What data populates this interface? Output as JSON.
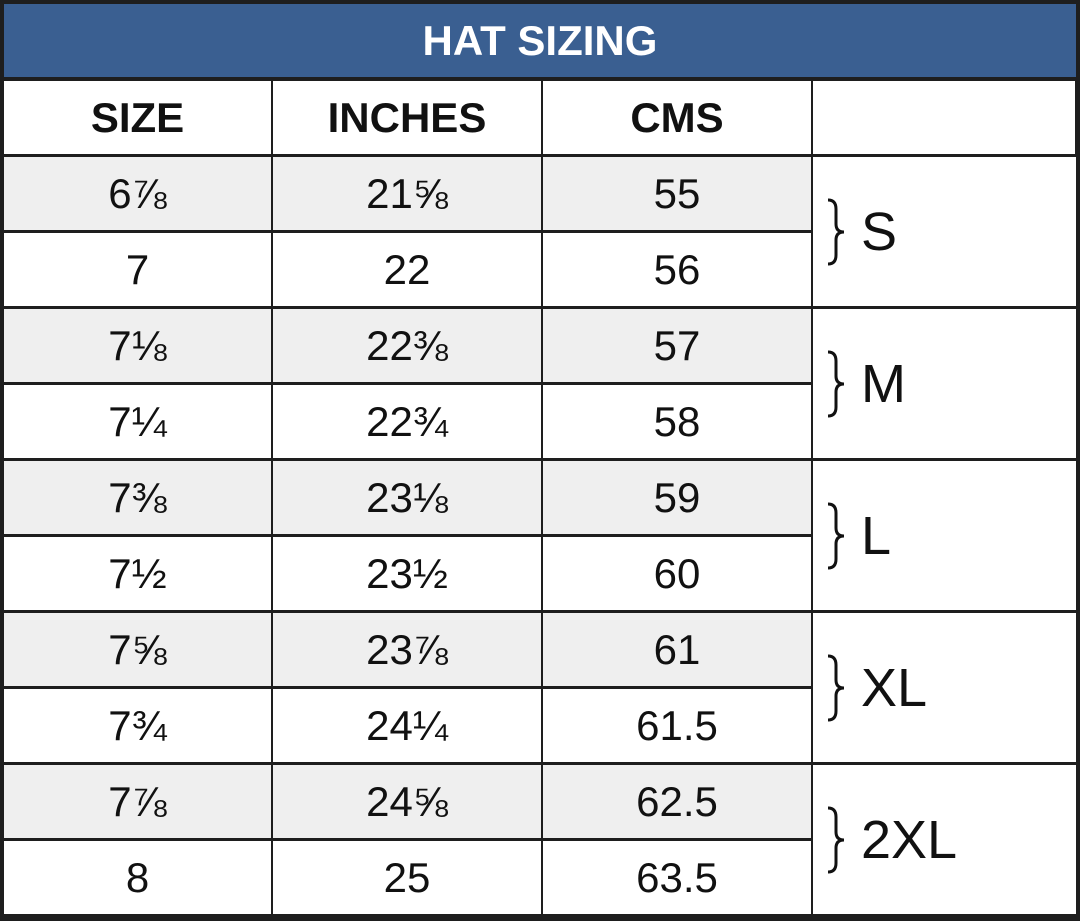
{
  "title": "HAT SIZING",
  "table": {
    "header": [
      "SIZE",
      "INCHES",
      "CMS"
    ],
    "rows": [
      [
        "6⅞",
        "21⅝",
        55
      ],
      [
        "7",
        "22",
        56
      ],
      [
        "7⅛",
        "22⅜",
        57
      ],
      [
        "7¼",
        "22¾",
        58
      ],
      [
        "7⅜",
        "23⅛",
        59
      ],
      [
        "7½",
        "23½",
        60
      ],
      [
        "7⅝",
        "23⅞",
        61
      ],
      [
        "7¾",
        "24¼",
        61.5
      ],
      [
        "7⅞",
        "24⅝",
        62.5
      ],
      [
        "8",
        "25",
        63.5
      ]
    ],
    "groups": [
      "S",
      "M",
      "L",
      "XL",
      "2XL"
    ]
  }
}
